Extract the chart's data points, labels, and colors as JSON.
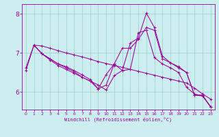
{
  "background_color": "#cceef0",
  "line_color": "#990099",
  "grid_color": "#99cccc",
  "xlabel": "Windchill (Refroidissement éolien,°C)",
  "xlabel_color": "#990099",
  "tick_color": "#990099",
  "xlim": [
    -0.5,
    23.5
  ],
  "ylim": [
    5.55,
    8.25
  ],
  "yticks": [
    6,
    7,
    8
  ],
  "xticks": [
    0,
    1,
    2,
    3,
    4,
    5,
    6,
    7,
    8,
    9,
    10,
    11,
    12,
    13,
    14,
    15,
    16,
    17,
    18,
    19,
    20,
    21,
    22,
    23
  ],
  "lines": [
    {
      "x": [
        0,
        1,
        2,
        3,
        4,
        5,
        6,
        7,
        8,
        9,
        10,
        11,
        12,
        13,
        14,
        15,
        16,
        17,
        18,
        19,
        20,
        21,
        22,
        23
      ],
      "y": [
        6.62,
        7.2,
        7.18,
        7.12,
        7.06,
        7.0,
        6.95,
        6.9,
        6.84,
        6.78,
        6.73,
        6.68,
        6.63,
        6.58,
        6.53,
        6.48,
        6.43,
        6.38,
        6.33,
        6.28,
        6.23,
        6.1,
        5.95,
        5.82
      ]
    },
    {
      "x": [
        1,
        2,
        3,
        4,
        5,
        6,
        7,
        8,
        9,
        10,
        11,
        12,
        13,
        14,
        15,
        16,
        17,
        18,
        19,
        20,
        21,
        22,
        23
      ],
      "y": [
        7.2,
        6.98,
        6.85,
        6.72,
        6.65,
        6.55,
        6.44,
        6.32,
        6.08,
        6.45,
        6.72,
        7.12,
        7.12,
        7.35,
        7.65,
        7.58,
        6.85,
        6.75,
        6.65,
        6.5,
        5.92,
        5.92,
        5.62
      ]
    },
    {
      "x": [
        1,
        2,
        3,
        4,
        5,
        6,
        7,
        8,
        9,
        10,
        11,
        12,
        13,
        14,
        15,
        16,
        17,
        18,
        19,
        20,
        21,
        22,
        23
      ],
      "y": [
        7.2,
        6.98,
        6.85,
        6.72,
        6.62,
        6.52,
        6.38,
        6.28,
        6.08,
        6.18,
        6.72,
        6.55,
        7.25,
        7.38,
        8.02,
        7.65,
        6.92,
        6.75,
        6.62,
        6.5,
        5.92,
        5.9,
        5.62
      ]
    },
    {
      "x": [
        0,
        1,
        2,
        3,
        4,
        5,
        6,
        7,
        8,
        9,
        10,
        11,
        12,
        13,
        14,
        15,
        16,
        17,
        18,
        19,
        20,
        21,
        22,
        23
      ],
      "y": [
        6.55,
        7.2,
        6.98,
        6.82,
        6.68,
        6.58,
        6.48,
        6.38,
        6.28,
        6.18,
        6.05,
        6.42,
        6.55,
        6.58,
        7.52,
        7.58,
        6.88,
        6.72,
        6.62,
        6.5,
        6.12,
        5.95,
        5.9,
        5.62
      ]
    }
  ]
}
